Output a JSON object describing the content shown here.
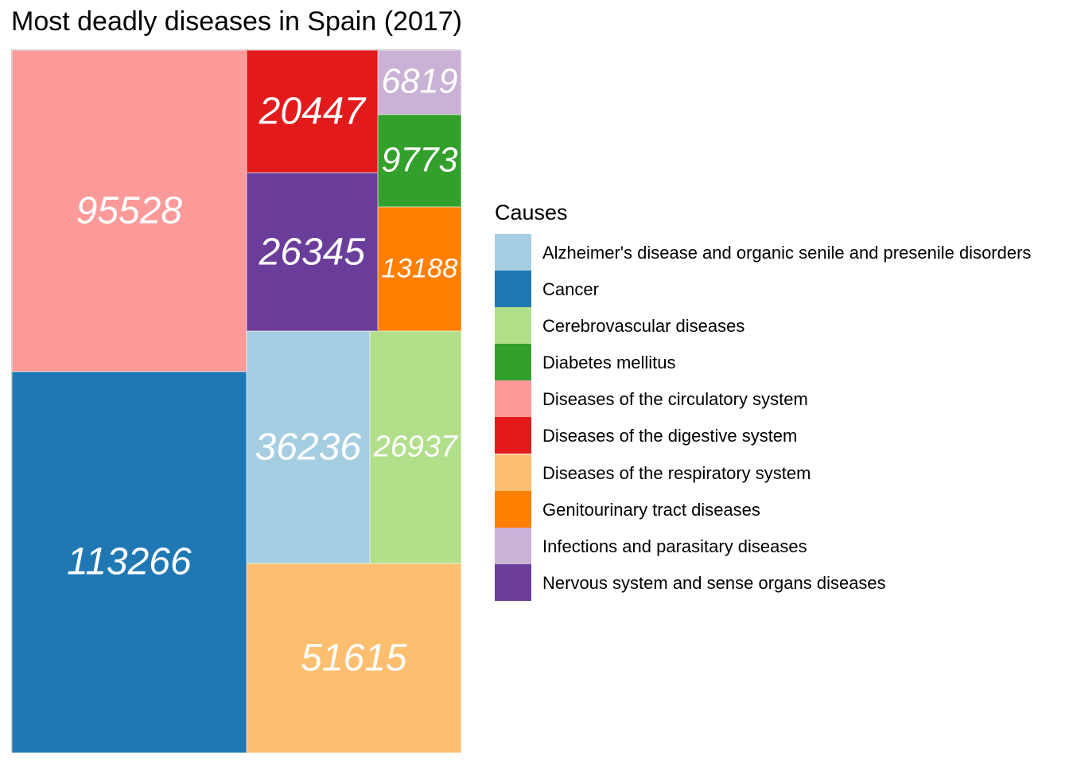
{
  "chart_data": {
    "type": "treemap",
    "title": "Most deadly diseases in Spain (2017)",
    "legend_title": "Causes",
    "legend_position": "right",
    "items": [
      {
        "cause": "Alzheimer's disease and organic senile and presenile disorders",
        "value": 36236,
        "color": "#a6cee3"
      },
      {
        "cause": "Cancer",
        "value": 113266,
        "color": "#1f78b4"
      },
      {
        "cause": "Cerebrovascular diseases",
        "value": 26937,
        "color": "#b2df8a"
      },
      {
        "cause": "Diabetes mellitus",
        "value": 9773,
        "color": "#33a02c"
      },
      {
        "cause": "Diseases of the circulatory system",
        "value": 95528,
        "color": "#fb9a99"
      },
      {
        "cause": "Diseases of the digestive system",
        "value": 20447,
        "color": "#e31a1c"
      },
      {
        "cause": "Diseases of the respiratory system",
        "value": 51615,
        "color": "#fdbf6f"
      },
      {
        "cause": "Genitourinary tract diseases",
        "value": 13188,
        "color": "#ff7f00"
      },
      {
        "cause": "Infections and parasitary diseases",
        "value": 6819,
        "color": "#cab2d6"
      },
      {
        "cause": "Nervous system and sense organs diseases",
        "value": 26345,
        "color": "#6a3d9a"
      }
    ]
  }
}
